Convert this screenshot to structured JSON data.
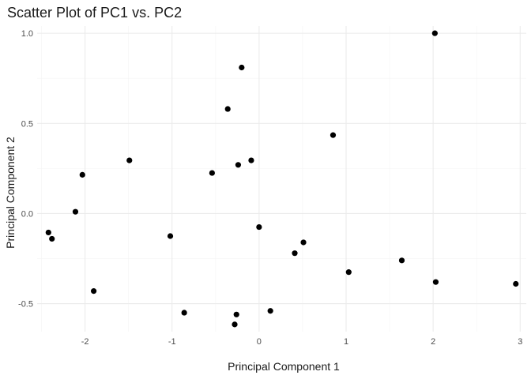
{
  "chart_data": {
    "type": "scatter",
    "title": "Scatter Plot of PC1 vs. PC2",
    "xlabel": "Principal Component 1",
    "ylabel": "Principal Component 2",
    "xlim": [
      -2.55,
      3.07
    ],
    "ylim": [
      -0.655,
      1.04
    ],
    "x_ticks": [
      -2,
      -1,
      0,
      1,
      2,
      3
    ],
    "x_tick_labels": [
      "-2",
      "-1",
      "0",
      "1",
      "2",
      "3"
    ],
    "y_ticks": [
      -0.5,
      0,
      0.5,
      1
    ],
    "y_tick_labels": [
      "-0.5",
      "0.0",
      "0.5",
      "1.0"
    ],
    "grid": true,
    "legend": "none",
    "point_color": "#000000",
    "points": [
      {
        "x": 2.02,
        "y": 1.0
      },
      {
        "x": -0.2,
        "y": 0.81
      },
      {
        "x": -0.36,
        "y": 0.58
      },
      {
        "x": 0.85,
        "y": 0.435
      },
      {
        "x": -1.49,
        "y": 0.295
      },
      {
        "x": -0.09,
        "y": 0.295
      },
      {
        "x": -0.24,
        "y": 0.27
      },
      {
        "x": -0.54,
        "y": 0.225
      },
      {
        "x": -2.03,
        "y": 0.215
      },
      {
        "x": -2.11,
        "y": 0.01
      },
      {
        "x": 0.0,
        "y": -0.075
      },
      {
        "x": -2.42,
        "y": -0.105
      },
      {
        "x": -2.38,
        "y": -0.14
      },
      {
        "x": -1.02,
        "y": -0.125
      },
      {
        "x": 0.51,
        "y": -0.16
      },
      {
        "x": 0.41,
        "y": -0.22
      },
      {
        "x": 1.64,
        "y": -0.26
      },
      {
        "x": 1.03,
        "y": -0.325
      },
      {
        "x": 2.03,
        "y": -0.38
      },
      {
        "x": 2.95,
        "y": -0.39
      },
      {
        "x": -1.9,
        "y": -0.43
      },
      {
        "x": -0.86,
        "y": -0.55
      },
      {
        "x": 0.13,
        "y": -0.54
      },
      {
        "x": -0.26,
        "y": -0.56
      },
      {
        "x": -0.28,
        "y": -0.615
      }
    ]
  }
}
